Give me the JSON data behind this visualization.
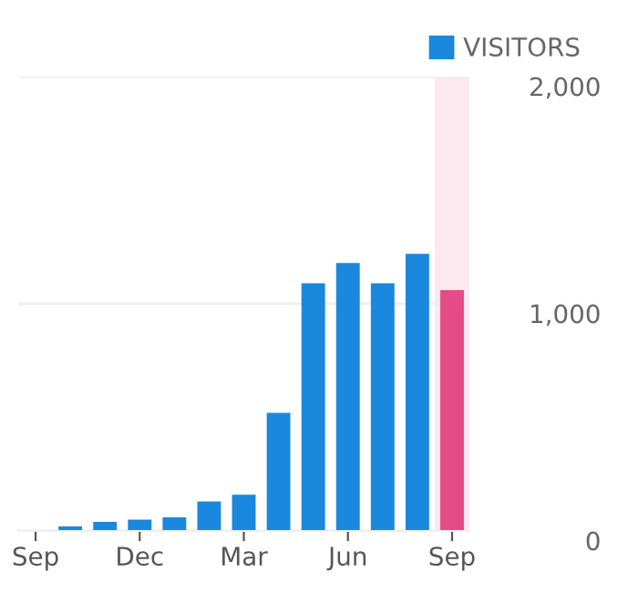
{
  "chart_data": {
    "type": "bar",
    "categories": [
      "Sep",
      null,
      null,
      "Dec",
      null,
      null,
      "Mar",
      null,
      null,
      "Jun",
      null,
      null,
      "Sep"
    ],
    "series": [
      {
        "name": "VISITORS",
        "color": "#1a88dc",
        "colors": [
          "#1a88dc",
          "#1a88dc",
          "#1a88dc",
          "#1a88dc",
          "#1a88dc",
          "#1a88dc",
          "#1a88dc",
          "#1a88dc",
          "#1a88dc",
          "#1a88dc",
          "#1a88dc",
          "#1a88dc",
          "#e54b86"
        ],
        "values": [
          0,
          20,
          40,
          50,
          60,
          130,
          160,
          520,
          1090,
          1180,
          1090,
          1220,
          1060
        ]
      }
    ],
    "ylim": [
      0,
      2000
    ],
    "yticks": [
      0,
      {
        "value": 1000,
        "label": "1,000"
      },
      {
        "value": 2000,
        "label": "2,000"
      }
    ],
    "grid": "y",
    "legend": "top right"
  }
}
